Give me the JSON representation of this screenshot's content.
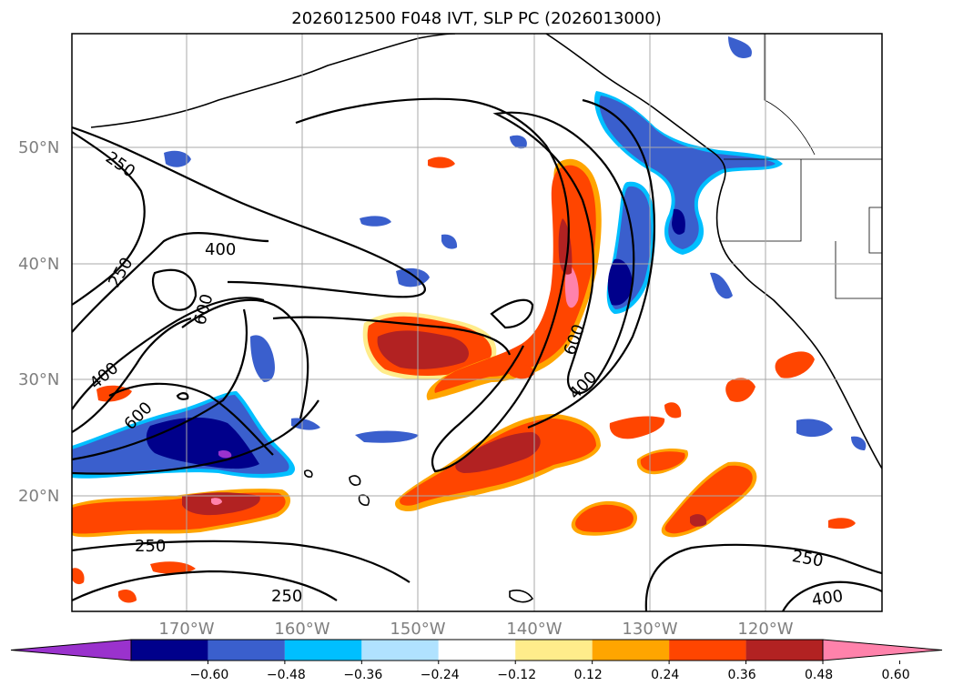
{
  "title": "2026012500 F048 IVT, SLP PC (2026013000)",
  "map": {
    "lat_labels": [
      {
        "value": 50,
        "text": "50°N"
      },
      {
        "value": 40,
        "text": "40°N"
      },
      {
        "value": 30,
        "text": "30°N"
      },
      {
        "value": 20,
        "text": "20°N"
      }
    ],
    "lon_labels": [
      {
        "value": -170,
        "text": "170°W"
      },
      {
        "value": -160,
        "text": "160°W"
      },
      {
        "value": -150,
        "text": "150°W"
      },
      {
        "value": -140,
        "text": "140°W"
      },
      {
        "value": -130,
        "text": "130°W"
      },
      {
        "value": -120,
        "text": "120°W"
      }
    ],
    "lon_range": [
      -180,
      -110
    ],
    "lat_range": [
      10,
      60
    ],
    "grid": true,
    "contour_labels": [
      "250",
      "250",
      "400",
      "600",
      "400",
      "600",
      "600",
      "400",
      "250",
      "250",
      "250",
      "400"
    ]
  },
  "colorbar": {
    "colors": [
      "#9a32cd",
      "#00008b",
      "#3a5fcd",
      "#00bfff",
      "#b0e2ff",
      "#ffffff",
      "#ffec8b",
      "#ffa500",
      "#ff4500",
      "#b22222",
      "#ff82ab"
    ],
    "tick_labels": [
      "−0.60",
      "−0.48",
      "−0.36",
      "−0.24",
      "−0.12",
      "0.12",
      "0.24",
      "0.36",
      "0.48",
      "0.60"
    ],
    "extend": "both"
  }
}
